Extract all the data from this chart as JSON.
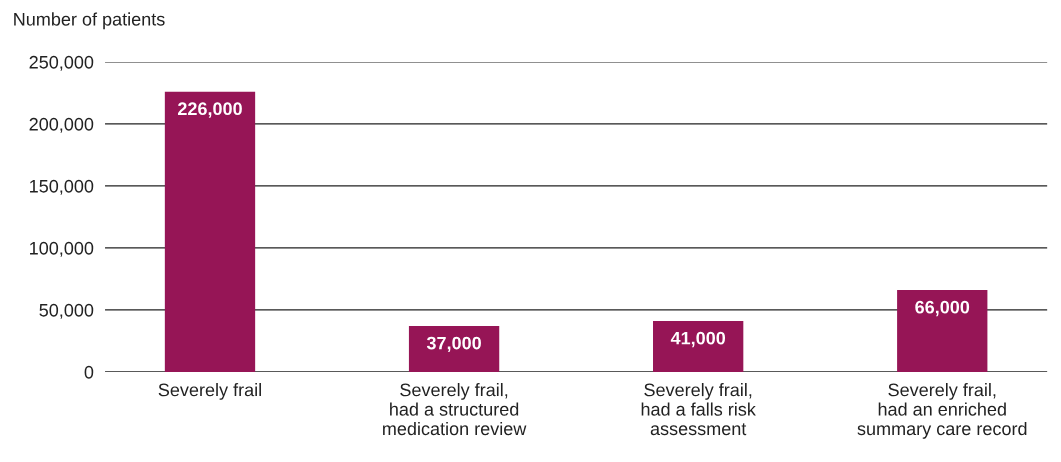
{
  "chart_data": {
    "type": "bar",
    "ylabel": "Number of patients",
    "categories": [
      "Severely frail",
      "Severely frail,\nhad a structured\nmedication review",
      "Severely frail,\nhad a falls risk\nassessment",
      "Severely frail,\nhad an enriched\nsummary care record"
    ],
    "values": [
      226000,
      37000,
      41000,
      66000
    ],
    "value_labels": [
      "226,000",
      "37,000",
      "41,000",
      "66,000"
    ],
    "color": "#961556",
    "ylim": [
      0,
      250000
    ],
    "yticks": [
      {
        "value": 0,
        "label": "0"
      },
      {
        "value": 50000,
        "label": "50,000"
      },
      {
        "value": 100000,
        "label": "100,000"
      },
      {
        "value": 150000,
        "label": "150,000"
      },
      {
        "value": 200000,
        "label": "200,000"
      },
      {
        "value": 250000,
        "label": "250,000"
      }
    ],
    "grid": "y",
    "legend": false
  }
}
